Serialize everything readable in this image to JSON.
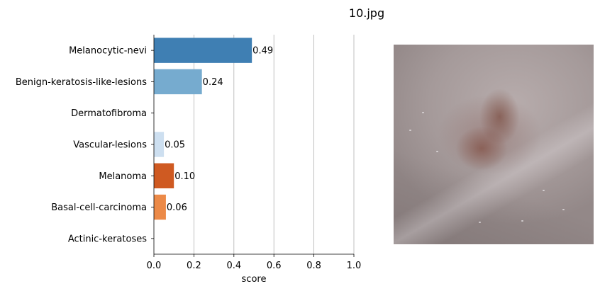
{
  "chart_data": {
    "type": "bar",
    "orientation": "horizontal",
    "title": "10.jpg",
    "xlabel": "score",
    "ylabel": "",
    "xlim": [
      0,
      1
    ],
    "x_ticks": [
      "0.0",
      "0.2",
      "0.4",
      "0.6",
      "0.8",
      "1.0"
    ],
    "grid": "vertical",
    "categories": [
      "Melanocytic-nevi",
      "Benign-keratosis-like-lesions",
      "Dermatofibroma",
      "Vascular-lesions",
      "Melanoma",
      "Basal-cell-carcinoma",
      "Actinic-keratoses"
    ],
    "values": [
      0.49,
      0.24,
      0.0,
      0.05,
      0.1,
      0.06,
      0.0
    ],
    "value_labels": [
      "0.49",
      "0.24",
      "",
      "0.05",
      "0.10",
      "0.06",
      ""
    ],
    "colors": [
      "#3f7fb3",
      "#76abcf",
      "#ffffff",
      "#cddff0",
      "#cf5a22",
      "#ec8a48",
      "#ffffff"
    ]
  },
  "image": {
    "name": "skin-lesion-photo"
  }
}
